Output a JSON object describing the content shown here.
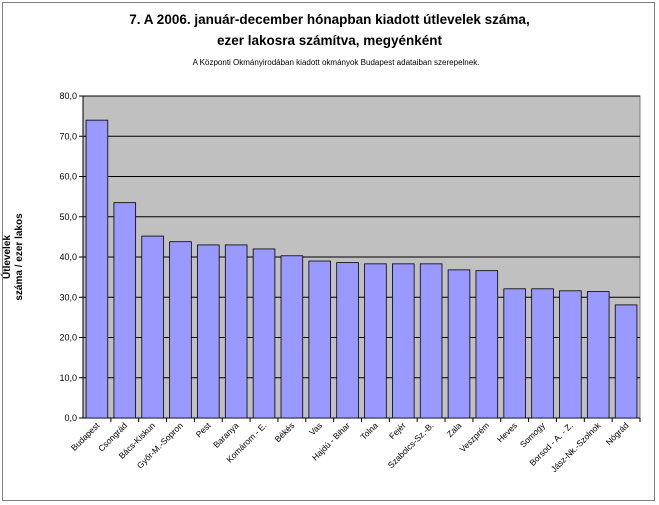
{
  "chart_data": {
    "type": "bar",
    "title": "7. A 2006. január-december hónapban kiadott útlevelek száma,",
    "title_line2": "ezer lakosra számítva, megyénként",
    "subtitle": "A Központi Okmányirodában kiadott okmányok Budapest adataiban szerepelnek.",
    "ylabel_line1": "Útlevelek",
    "ylabel_line2": "száma / ezer lakos",
    "xlabel": "",
    "ylim": [
      0,
      80
    ],
    "yticks": [
      "0,0",
      "10,0",
      "20,0",
      "30,0",
      "40,0",
      "50,0",
      "60,0",
      "70,0",
      "80,0"
    ],
    "grid": true,
    "legend": "none",
    "categories": [
      "Budapest",
      "Csongrád",
      "Bács-Kiskun",
      "Győr-M.-Sopron",
      "Pest",
      "Baranya",
      "Komárom - E.",
      "Békés",
      "Vas",
      "Hajdú - Bihar",
      "Tolna",
      "Fejér",
      "Szabolcs-Sz.-B.",
      "Zala",
      "Veszprém",
      "Heves",
      "Somogy",
      "Borsod - A. - Z.",
      "Jász-Nk.-Szolnok",
      "Nógrád"
    ],
    "values": [
      74.0,
      53.5,
      45.2,
      43.8,
      43.0,
      43.0,
      42.0,
      40.3,
      39.0,
      38.6,
      38.3,
      38.3,
      38.3,
      36.8,
      36.6,
      32.1,
      32.1,
      31.6,
      31.4,
      28.1
    ],
    "bar_color": "#9999ff",
    "plot_background": "#c0c0c0"
  }
}
